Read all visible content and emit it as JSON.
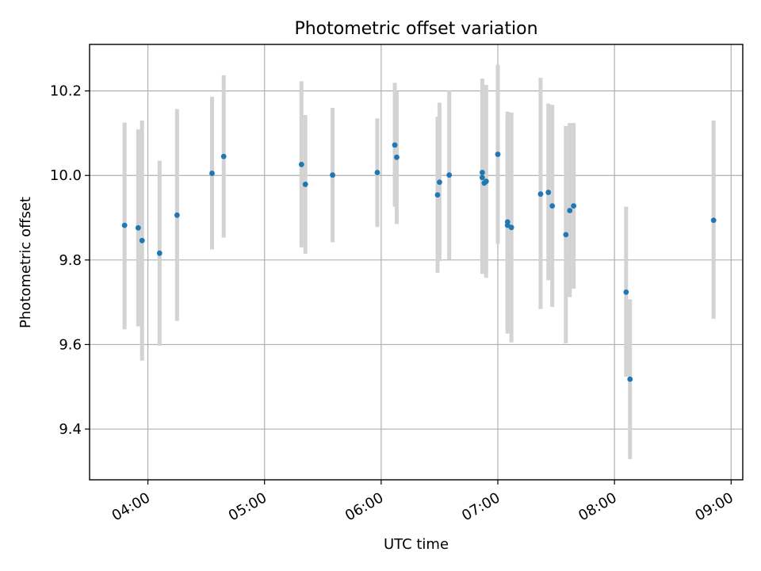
{
  "chart_data": {
    "type": "scatter",
    "title": "Photometric offset variation",
    "xlabel": "UTC time",
    "ylabel": "Photometric offset",
    "x_unit": "minutes after 00:00 UTC",
    "xlim": [
      3.5,
      9.1
    ],
    "ylim": [
      9.28,
      10.31
    ],
    "x_ticks": [
      {
        "value": 4,
        "label": "04:00"
      },
      {
        "value": 5,
        "label": "05:00"
      },
      {
        "value": 6,
        "label": "06:00"
      },
      {
        "value": 7,
        "label": "07:00"
      },
      {
        "value": 8,
        "label": "08:00"
      },
      {
        "value": 9,
        "label": "09:00"
      }
    ],
    "y_ticks": [
      {
        "value": 9.4,
        "label": "9.4"
      },
      {
        "value": 9.6,
        "label": "9.6"
      },
      {
        "value": 9.8,
        "label": "9.8"
      },
      {
        "value": 10.0,
        "label": "10.0"
      },
      {
        "value": 10.2,
        "label": "10.2"
      }
    ],
    "grid": true,
    "marker_color": "#1f77b4",
    "errorbar_color": "#d3d3d3",
    "points": [
      {
        "x": "03:48",
        "y": 9.882,
        "err_low": 9.636,
        "err_high": 10.125
      },
      {
        "x": "03:55",
        "y": 9.876,
        "err_low": 9.643,
        "err_high": 10.109
      },
      {
        "x": "03:57",
        "y": 9.846,
        "err_low": 9.562,
        "err_high": 10.13
      },
      {
        "x": "04:06",
        "y": 9.816,
        "err_low": 9.597,
        "err_high": 10.035
      },
      {
        "x": "04:15",
        "y": 9.906,
        "err_low": 9.656,
        "err_high": 10.157
      },
      {
        "x": "04:33",
        "y": 10.005,
        "err_low": 9.825,
        "err_high": 10.186
      },
      {
        "x": "04:39",
        "y": 10.045,
        "err_low": 9.853,
        "err_high": 10.237
      },
      {
        "x": "05:19",
        "y": 10.026,
        "err_low": 9.83,
        "err_high": 10.223
      },
      {
        "x": "05:21",
        "y": 9.979,
        "err_low": 9.815,
        "err_high": 10.143
      },
      {
        "x": "05:35",
        "y": 10.001,
        "err_low": 9.842,
        "err_high": 10.16
      },
      {
        "x": "05:58",
        "y": 10.007,
        "err_low": 9.878,
        "err_high": 10.135
      },
      {
        "x": "06:07",
        "y": 10.072,
        "err_low": 9.926,
        "err_high": 10.219
      },
      {
        "x": "06:08",
        "y": 10.043,
        "err_low": 9.885,
        "err_high": 10.2
      },
      {
        "x": "06:29",
        "y": 9.954,
        "err_low": 9.77,
        "err_high": 10.139
      },
      {
        "x": "06:30",
        "y": 9.984,
        "err_low": 9.797,
        "err_high": 10.172
      },
      {
        "x": "06:35",
        "y": 10.001,
        "err_low": 9.801,
        "err_high": 10.201
      },
      {
        "x": "06:52",
        "y": 10.007,
        "err_low": 9.786,
        "err_high": 10.229
      },
      {
        "x": "06:52",
        "y": 9.995,
        "err_low": 9.767,
        "err_high": 10.224
      },
      {
        "x": "06:53",
        "y": 9.982,
        "err_low": 9.792,
        "err_high": 10.172
      },
      {
        "x": "06:54",
        "y": 9.986,
        "err_low": 9.758,
        "err_high": 10.214
      },
      {
        "x": "07:00",
        "y": 10.05,
        "err_low": 9.838,
        "err_high": 10.262
      },
      {
        "x": "07:05",
        "y": 9.89,
        "err_low": 9.628,
        "err_high": 10.151
      },
      {
        "x": "07:05",
        "y": 9.882,
        "err_low": 9.626,
        "err_high": 10.138
      },
      {
        "x": "07:07",
        "y": 9.877,
        "err_low": 9.605,
        "err_high": 10.149
      },
      {
        "x": "07:22",
        "y": 9.956,
        "err_low": 9.684,
        "err_high": 10.231
      },
      {
        "x": "07:26",
        "y": 9.96,
        "err_low": 9.752,
        "err_high": 10.17
      },
      {
        "x": "07:28",
        "y": 9.928,
        "err_low": 9.689,
        "err_high": 10.167
      },
      {
        "x": "07:35",
        "y": 9.86,
        "err_low": 9.603,
        "err_high": 10.117
      },
      {
        "x": "07:37",
        "y": 9.917,
        "err_low": 9.712,
        "err_high": 10.124
      },
      {
        "x": "07:39",
        "y": 9.928,
        "err_low": 9.732,
        "err_high": 10.124
      },
      {
        "x": "08:06",
        "y": 9.724,
        "err_low": 9.524,
        "err_high": 9.926
      },
      {
        "x": "08:08",
        "y": 9.518,
        "err_low": 9.329,
        "err_high": 9.707
      },
      {
        "x": "08:51",
        "y": 9.894,
        "err_low": 9.661,
        "err_high": 10.13
      }
    ]
  }
}
